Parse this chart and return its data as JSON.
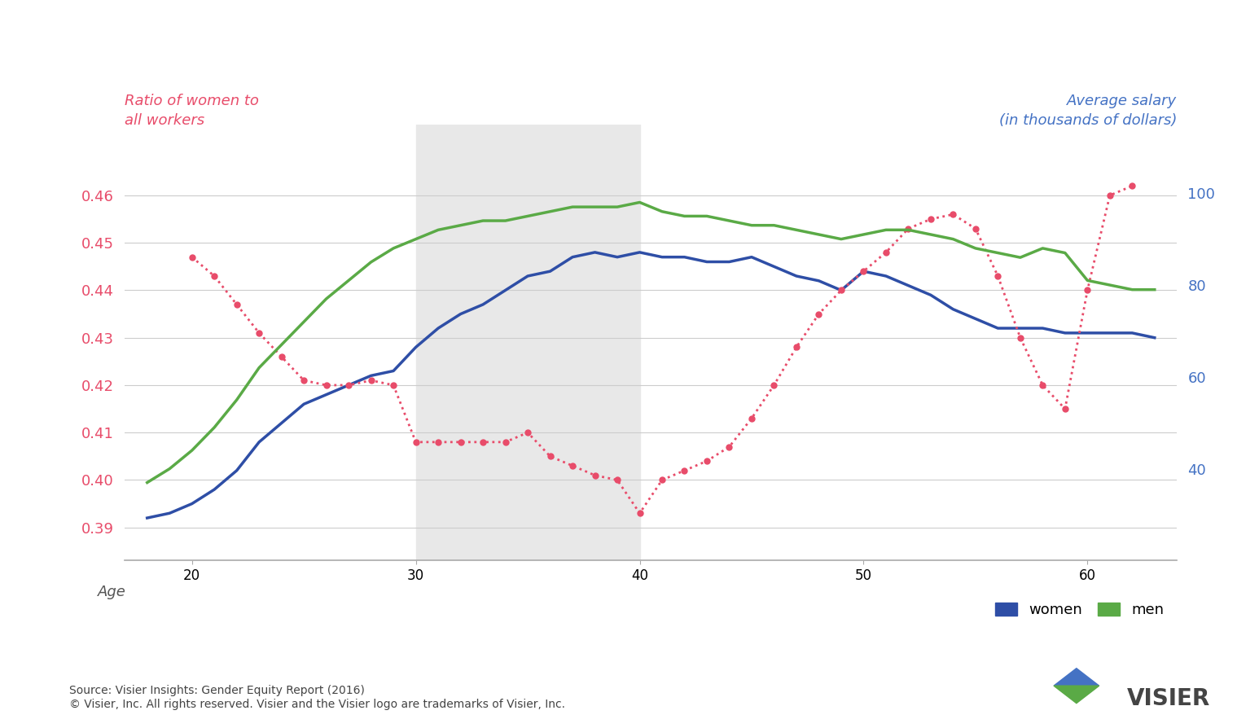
{
  "title_left": "Ratio of women to\nall workers",
  "title_right": "Average salary\n(in thousands of dollars)",
  "xlabel": "Age",
  "left_color": "#e84c6a",
  "right_color": "#4472c4",
  "bg_color": "#ffffff",
  "shade_region": [
    30,
    40
  ],
  "shade_color": "#e8e8e8",
  "yleft_min": 0.383,
  "yleft_max": 0.475,
  "yright_min": 20,
  "yright_max": 115,
  "yticks_left": [
    0.39,
    0.4,
    0.41,
    0.42,
    0.43,
    0.44,
    0.45,
    0.46
  ],
  "yticks_right": [
    40,
    60,
    80,
    100
  ],
  "xticks": [
    20,
    30,
    40,
    50,
    60
  ],
  "source_text": "Source: Visier Insights: Gender Equity Report (2016)\n© Visier, Inc. All rights reserved. Visier and the Visier logo are trademarks of Visier, Inc.",
  "age": [
    18,
    19,
    20,
    21,
    22,
    23,
    24,
    25,
    26,
    27,
    28,
    29,
    30,
    31,
    32,
    33,
    34,
    35,
    36,
    37,
    38,
    39,
    40,
    41,
    42,
    43,
    44,
    45,
    46,
    47,
    48,
    49,
    50,
    51,
    52,
    53,
    54,
    55,
    56,
    57,
    58,
    59,
    60,
    61,
    62,
    63
  ],
  "ratio_women": [
    0.392,
    0.393,
    0.395,
    0.398,
    0.402,
    0.408,
    0.412,
    0.416,
    0.418,
    0.42,
    0.422,
    0.423,
    0.428,
    0.432,
    0.435,
    0.437,
    0.44,
    0.443,
    0.444,
    0.447,
    0.448,
    0.447,
    0.448,
    0.447,
    0.447,
    0.446,
    0.446,
    0.447,
    0.445,
    0.443,
    0.442,
    0.44,
    0.444,
    0.443,
    0.441,
    0.439,
    0.436,
    0.434,
    0.432,
    0.432,
    0.432,
    0.431,
    0.431,
    0.431,
    0.431,
    0.43
  ],
  "gap_dotted_age": [
    20,
    21,
    22,
    23,
    24,
    25,
    26,
    27,
    28,
    29,
    30,
    31,
    32,
    33,
    34,
    35,
    36,
    37,
    38,
    39,
    40,
    41,
    42,
    43,
    44,
    45,
    46,
    47,
    48,
    49,
    50,
    51,
    52,
    53,
    54,
    55,
    56,
    57,
    58,
    59,
    60,
    61,
    62
  ],
  "gap_dotted_ratio": [
    0.447,
    0.443,
    0.437,
    0.431,
    0.426,
    0.421,
    0.42,
    0.42,
    0.421,
    0.42,
    0.408,
    0.408,
    0.408,
    0.408,
    0.408,
    0.41,
    0.405,
    0.403,
    0.401,
    0.4,
    0.393,
    0.4,
    0.402,
    0.404,
    0.407,
    0.413,
    0.42,
    0.428,
    0.435,
    0.44,
    0.444,
    0.448,
    0.453,
    0.455,
    0.456,
    0.453,
    0.443,
    0.43,
    0.42,
    0.415,
    0.44,
    0.46,
    0.462
  ],
  "men_sal_x": [
    18,
    19,
    20,
    21,
    22,
    23,
    24,
    25,
    26,
    27,
    28,
    29,
    30,
    31,
    32,
    33,
    34,
    35,
    36,
    37,
    38,
    39,
    40,
    41,
    42,
    43,
    44,
    45,
    46,
    47,
    48,
    49,
    50,
    51,
    52,
    53,
    54,
    55,
    56,
    57,
    58,
    59,
    60,
    61,
    62,
    63
  ],
  "men_sal_y": [
    37,
    40,
    44,
    49,
    55,
    62,
    67,
    72,
    77,
    81,
    85,
    88,
    90,
    92,
    93,
    94,
    94,
    95,
    96,
    97,
    97,
    97,
    98,
    96,
    95,
    95,
    94,
    93,
    93,
    92,
    91,
    90,
    91,
    92,
    92,
    91,
    90,
    88,
    87,
    86,
    88,
    87,
    81,
    80,
    79,
    79
  ],
  "women_salary_color": "#2e4ea6",
  "men_salary_color": "#5aaa46",
  "gap_color": "#e84c6a"
}
